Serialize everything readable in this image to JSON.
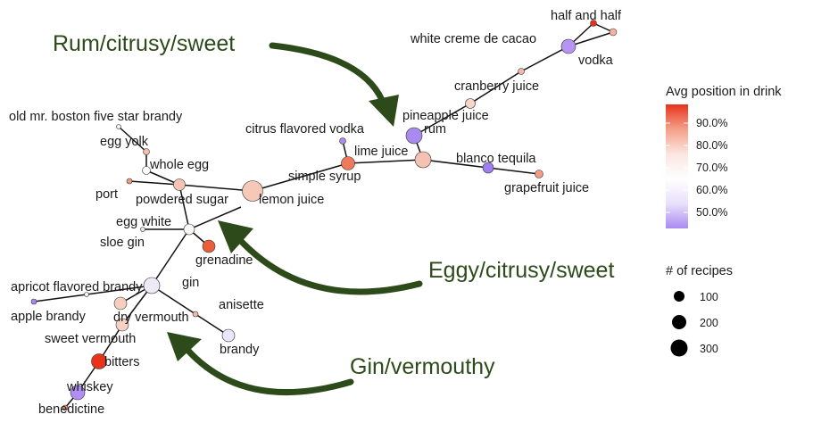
{
  "nodes": [
    {
      "id": "half-and-half",
      "label": "half and half",
      "color": "#e8321c"
    },
    {
      "id": "white-creme-de-cacao",
      "label": "white creme de cacao",
      "color": "#f4b4a0"
    },
    {
      "id": "vodka",
      "label": "vodka",
      "color": "#b594f2"
    },
    {
      "id": "cranberry-juice",
      "label": "cranberry juice",
      "color": "#f6b8a4"
    },
    {
      "id": "pineapple-juice",
      "label": "pineapple juice",
      "color": "#f9d5c9"
    },
    {
      "id": "rum",
      "label": "rum",
      "color": "#a98af0"
    },
    {
      "id": "citrus-flavored-vodka",
      "label": "citrus flavored vodka",
      "color": "#a98af0"
    },
    {
      "id": "lime-juice",
      "label": "lime juice",
      "color": "#f5c1b2"
    },
    {
      "id": "simple-syrup",
      "label": "simple syrup",
      "color": "#ee7a5a"
    },
    {
      "id": "blanco-tequila",
      "label": "blanco tequila",
      "color": "#9f7ff0"
    },
    {
      "id": "grapefruit-juice",
      "label": "grapefruit juice",
      "color": "#f39b83"
    },
    {
      "id": "lemon-juice",
      "label": "lemon juice",
      "color": "#f6c8b8"
    },
    {
      "id": "powdered-sugar",
      "label": "powdered sugar",
      "color": "#f7c4b4"
    },
    {
      "id": "old-mr-boston",
      "label": "old mr. boston five star brandy",
      "color": "#f5f5f7"
    },
    {
      "id": "egg-yolk",
      "label": "egg yolk",
      "color": "#f4c0ae"
    },
    {
      "id": "whole-egg",
      "label": "whole egg",
      "color": "#fafafa"
    },
    {
      "id": "port",
      "label": "port",
      "color": "#f29a80"
    },
    {
      "id": "egg-white",
      "label": "egg white",
      "color": "#fbf7f7"
    },
    {
      "id": "sloe-gin",
      "label": "sloe gin",
      "color": "#f0e8ec"
    },
    {
      "id": "grenadine",
      "label": "grenadine",
      "color": "#ea5d3c"
    },
    {
      "id": "apricot-flavored-brandy",
      "label": "apricot flavored brandy",
      "color": "#f6f2f6"
    },
    {
      "id": "gin",
      "label": "gin",
      "color": "#eeeaf8"
    },
    {
      "id": "apple-brandy",
      "label": "apple brandy",
      "color": "#a98af0"
    },
    {
      "id": "dry-vermouth",
      "label": "dry vermouth",
      "color": "#f5cec0"
    },
    {
      "id": "anisette",
      "label": "anisette",
      "color": "#f5b8a6"
    },
    {
      "id": "sweet-vermouth",
      "label": "sweet vermouth",
      "color": "#f6d2c4"
    },
    {
      "id": "brandy",
      "label": "brandy",
      "color": "#ebe6f7"
    },
    {
      "id": "bitters",
      "label": "bitters",
      "color": "#e8321c"
    },
    {
      "id": "whiskey",
      "label": "whiskey",
      "color": "#b08ef2"
    },
    {
      "id": "benedictine",
      "label": "benedictine",
      "color": "#f29a80"
    }
  ],
  "callouts": [
    {
      "id": "rum",
      "text": "Rum/citrusy/sweet"
    },
    {
      "id": "eggy",
      "text": "Eggy/citrusy/sweet"
    },
    {
      "id": "gin",
      "text": "Gin/vermouthy"
    }
  ],
  "legend": {
    "color_title": "Avg position in drink",
    "color_ticks": [
      "90.0%",
      "80.0%",
      "70.0%",
      "60.0%",
      "50.0%"
    ],
    "gradient": [
      "#e8321c",
      "#f4a08a",
      "#fbe6e0",
      "#ffffff",
      "#e9e0fc",
      "#a98af0"
    ],
    "size_title": "# of recipes",
    "size_ticks": [
      "100",
      "200",
      "300"
    ]
  },
  "colors": {
    "arrow": "#2d4a1a",
    "callout_text": "#2d4a1a",
    "edge": "#111111"
  }
}
